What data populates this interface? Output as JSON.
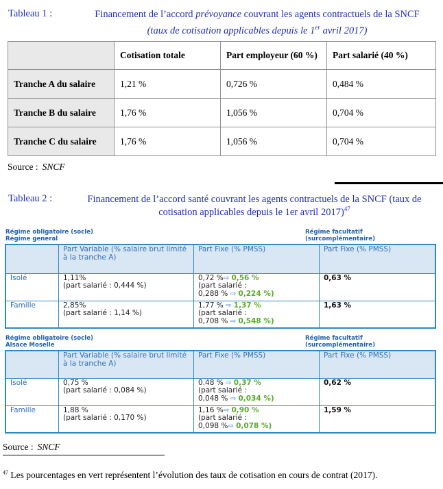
{
  "tableau1": {
    "label": "Tableau 1 :",
    "title_pre": "Financement de l’accord ",
    "title_emph": "prévoyance",
    "title_post": " couvrant les agents contractuels de la SNCF",
    "subtitle_pre": "(taux de cotisation applicables depuis le 1",
    "subtitle_sup": "er",
    "subtitle_post": " avril 2017)",
    "headers": [
      "",
      "Cotisation totale",
      "Part employeur (60 %)",
      "Part salarié (40 %)"
    ],
    "rows": [
      [
        "Tranche A du salaire",
        "1,21 %",
        "0,726 %",
        "0,484 %"
      ],
      [
        "Tranche B du salaire",
        "1,76 %",
        "1,056 %",
        "0,704 %"
      ],
      [
        "Tranche C du salaire",
        "1,76 %",
        "1,056 %",
        "0,704 %"
      ]
    ],
    "source_label": "Source :",
    "source_value": "SNCF"
  },
  "tableau2": {
    "label": "Tableau 2 :",
    "title": "Financement de l’accord santé couvrant les agents contractuels de la SNCF (taux de cotisation applicables depuis le 1er avril 2017)",
    "footnote_ref": "47",
    "block1": {
      "left_line1": "Régime obligatoire (socle)",
      "left_line2": "Régime general",
      "right_line1": "Régime facultatif",
      "right_line2": "(surcomplémentaire)",
      "headers": [
        "",
        "Part Variable (% salaire brut limité à la tranche A)",
        "Part Fixe (% PMSS)",
        "Part Fixe (% PMSS)"
      ],
      "rows": [
        {
          "label": "Isolé",
          "var": "1,11%",
          "var_sub": "(part salarié : 0,444 %)",
          "fix": "0,72 %",
          "fix_new": "0,56 %",
          "fix_sub_label": "(part salarié :",
          "fix_sub": "0,288 %",
          "fix_sub_new": "0,224 %)",
          "fac": "0,63 %"
        },
        {
          "label": "Famille",
          "var": "2,85%",
          "var_sub": "(part salarié : 1,14 %)",
          "fix": "1,77 %",
          "fix_new": "1,37 %",
          "fix_sub_label": "(part salarié :",
          "fix_sub": "0,708 %",
          "fix_sub_new": "0,548 %)",
          "fac": "1,63 %"
        }
      ]
    },
    "block2": {
      "left_line1": "Régime obligatoire (socle)",
      "left_line2": "Alsace Moselle",
      "right_line1": "Régime facultatif",
      "right_line2": "(surcomplémentaire)",
      "headers": [
        "",
        "Part Variable (% salaire brut limité à la tranche A)",
        "Part Fixe (% PMSS)",
        "Part Fixe (% PMSS)"
      ],
      "rows": [
        {
          "label": "Isolé",
          "var": "0,75 %",
          "var_sub": "(part salarié : 0,084 %)",
          "fix": "0.48 %",
          "fix_new": "0,37 %",
          "fix_sub_label": "(part salarié :",
          "fix_sub": "0,048 %",
          "fix_sub_new": "0,034 %)",
          "fac": "0,62 %"
        },
        {
          "label": "Famille",
          "var": "1,88 %",
          "var_sub": "(part salarié : 0,170 %)",
          "fix": "1,16 %",
          "fix_new": "0,90 %",
          "fix_sub_label": "(part salarié :",
          "fix_sub": "0,098 %",
          "fix_sub_new": "0,078 %)",
          "fac": "1,59 %"
        }
      ]
    },
    "source_label": "Source :",
    "source_value": "SNCF"
  },
  "footnote": {
    "num": "47",
    "text": " Les pourcentages en vert représentent l’évolution des taux de cotisation en cours de contrat (2017)."
  }
}
